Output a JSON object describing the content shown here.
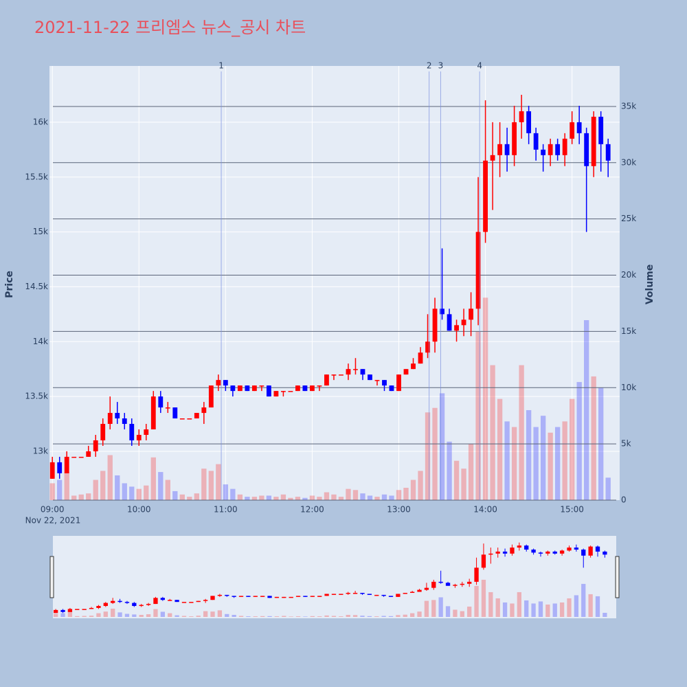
{
  "chart_data": {
    "type": "candlestick",
    "title": "2021-11-22 프리엠스 뉴스_공시 차트",
    "y_label": "Price",
    "y2_label": "Volume",
    "x_date_label": "Nov 22, 2021",
    "increasing_color": "#ff0000",
    "decreasing_color": "#0000ff",
    "x": [
      "09:00",
      "09:05",
      "09:10",
      "09:15",
      "09:20",
      "09:25",
      "09:30",
      "09:35",
      "09:40",
      "09:45",
      "09:50",
      "09:55",
      "10:00",
      "10:05",
      "10:10",
      "10:15",
      "10:20",
      "10:25",
      "10:30",
      "10:35",
      "10:40",
      "10:45",
      "10:50",
      "10:55",
      "11:00",
      "11:05",
      "11:10",
      "11:15",
      "11:20",
      "11:25",
      "11:30",
      "11:35",
      "11:40",
      "11:45",
      "11:50",
      "11:55",
      "12:00",
      "12:05",
      "12:10",
      "12:15",
      "12:20",
      "12:25",
      "12:30",
      "12:35",
      "12:40",
      "12:45",
      "12:50",
      "12:55",
      "13:00",
      "13:05",
      "13:10",
      "13:15",
      "13:20",
      "13:25",
      "13:30",
      "13:35",
      "13:40",
      "13:45",
      "13:50",
      "13:55",
      "14:00",
      "14:05",
      "14:10",
      "14:15",
      "14:20",
      "14:25",
      "14:30",
      "14:35",
      "14:40",
      "14:45",
      "14:50",
      "14:55",
      "15:00",
      "15:05",
      "15:10",
      "15:15",
      "15:20",
      "15:25"
    ],
    "open": [
      12750,
      12900,
      12800,
      12950,
      12950,
      12950,
      13000,
      13100,
      13250,
      13350,
      13300,
      13250,
      13100,
      13150,
      13200,
      13500,
      13400,
      13400,
      13300,
      13300,
      13300,
      13350,
      13400,
      13600,
      13650,
      13600,
      13550,
      13600,
      13550,
      13600,
      13600,
      13500,
      13550,
      13550,
      13550,
      13600,
      13550,
      13600,
      13600,
      13700,
      13700,
      13700,
      13750,
      13750,
      13700,
      13650,
      13650,
      13600,
      13550,
      13700,
      13750,
      13800,
      13900,
      14000,
      14300,
      14250,
      14100,
      14150,
      14200,
      14300,
      15000,
      15650,
      15700,
      15800,
      15700,
      16000,
      16100,
      15900,
      15750,
      15700,
      15800,
      15700,
      15850,
      16000,
      15900,
      15600,
      16050,
      15800
    ],
    "high": [
      12950,
      12950,
      13000,
      12950,
      12950,
      13050,
      13150,
      13300,
      13500,
      13450,
      13350,
      13300,
      13200,
      13250,
      13550,
      13550,
      13450,
      13400,
      13300,
      13300,
      13350,
      13450,
      13600,
      13700,
      13650,
      13600,
      13600,
      13600,
      13600,
      13600,
      13600,
      13550,
      13550,
      13550,
      13600,
      13600,
      13600,
      13600,
      13700,
      13700,
      13700,
      13800,
      13850,
      13750,
      13700,
      13650,
      13650,
      13600,
      13700,
      13750,
      13850,
      13950,
      14250,
      14400,
      14850,
      14300,
      14200,
      14300,
      14450,
      15500,
      16200,
      16000,
      16000,
      15950,
      16150,
      16250,
      16150,
      15950,
      15800,
      15850,
      15850,
      15900,
      16100,
      16150,
      15950,
      16100,
      16100,
      15850
    ],
    "low": [
      12750,
      12750,
      12800,
      12950,
      12950,
      12950,
      12950,
      13050,
      13200,
      13250,
      13200,
      13050,
      13050,
      13100,
      13200,
      13350,
      13350,
      13300,
      13300,
      13300,
      13300,
      13250,
      13400,
      13550,
      13550,
      13500,
      13550,
      13550,
      13550,
      13550,
      13500,
      13500,
      13500,
      13550,
      13550,
      13550,
      13550,
      13550,
      13600,
      13650,
      13700,
      13650,
      13700,
      13650,
      13650,
      13600,
      13550,
      13550,
      13550,
      13700,
      13750,
      13800,
      13850,
      13900,
      14200,
      14100,
      14000,
      14050,
      14050,
      14150,
      14900,
      15200,
      15500,
      15550,
      15600,
      15850,
      15800,
      15650,
      15550,
      15600,
      15650,
      15600,
      15800,
      15800,
      15000,
      15500,
      15550,
      15500
    ],
    "close": [
      12900,
      12800,
      12950,
      12950,
      12950,
      13000,
      13100,
      13250,
      13350,
      13300,
      13250,
      13100,
      13150,
      13200,
      13500,
      13400,
      13400,
      13300,
      13300,
      13300,
      13350,
      13400,
      13600,
      13650,
      13600,
      13550,
      13600,
      13550,
      13600,
      13600,
      13500,
      13550,
      13550,
      13550,
      13600,
      13550,
      13600,
      13600,
      13700,
      13700,
      13700,
      13750,
      13750,
      13700,
      13650,
      13650,
      13600,
      13550,
      13700,
      13750,
      13800,
      13900,
      14000,
      14300,
      14250,
      14100,
      14150,
      14200,
      14300,
      15000,
      15650,
      15700,
      15800,
      15700,
      16000,
      16100,
      15900,
      15750,
      15700,
      15800,
      15700,
      15850,
      16000,
      15900,
      15600,
      16050,
      15800,
      15650
    ],
    "volume": [
      1500,
      1800,
      2500,
      400,
      500,
      600,
      1800,
      2600,
      4000,
      2200,
      1500,
      1200,
      1000,
      1300,
      3800,
      2500,
      1800,
      800,
      500,
      300,
      600,
      2800,
      2600,
      3200,
      1400,
      1000,
      500,
      300,
      300,
      400,
      400,
      300,
      500,
      200,
      300,
      200,
      400,
      300,
      700,
      500,
      300,
      1000,
      900,
      600,
      400,
      300,
      500,
      400,
      900,
      1100,
      1800,
      2600,
      7800,
      8200,
      9500,
      5200,
      3500,
      2800,
      5000,
      15000,
      18000,
      12000,
      9000,
      7000,
      6500,
      12000,
      8000,
      6500,
      7500,
      6000,
      6500,
      7000,
      9000,
      10500,
      16000,
      11000,
      10000,
      2000
    ],
    "xlim": [
      "08:58",
      "15:33"
    ],
    "xticks": [
      "09:00",
      "10:00",
      "11:00",
      "12:00",
      "13:00",
      "14:00",
      "15:00"
    ],
    "ylim": [
      12555,
      16513
    ],
    "yticks": [
      {
        "value": 13000,
        "label": "13k"
      },
      {
        "value": 13500,
        "label": "13.5k"
      },
      {
        "value": 14000,
        "label": "14k"
      },
      {
        "value": 14500,
        "label": "14.5k"
      },
      {
        "value": 15000,
        "label": "15k"
      },
      {
        "value": 15500,
        "label": "15.5k"
      },
      {
        "value": 16000,
        "label": "16k"
      }
    ],
    "y2lim": [
      0,
      38600
    ],
    "y2ticks": [
      0,
      {
        "value": 5000,
        "label": "5k"
      },
      {
        "value": 10000,
        "label": "10k"
      },
      {
        "value": 15000,
        "label": "15k"
      },
      {
        "value": 20000,
        "label": "20k"
      },
      {
        "value": 25000,
        "label": "25k"
      },
      {
        "value": 30000,
        "label": "30k"
      },
      {
        "value": 35000,
        "label": "35k"
      }
    ],
    "annotations": [
      {
        "x": "10:57",
        "label": "1"
      },
      {
        "x": "13:21",
        "label": "2"
      },
      {
        "x": "13:29",
        "label": "3"
      },
      {
        "x": "13:56",
        "label": "4"
      }
    ]
  }
}
